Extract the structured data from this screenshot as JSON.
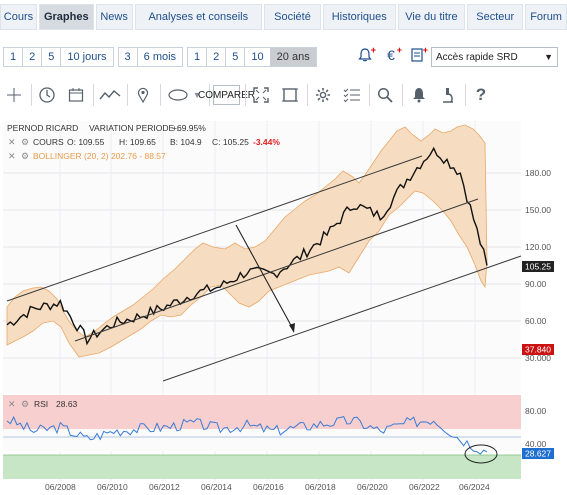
{
  "nav": {
    "tabs": [
      {
        "label": "Cours",
        "active": false
      },
      {
        "label": "Graphes",
        "active": true
      },
      {
        "label": "News",
        "active": false
      },
      {
        "label": "Analyses et conseils",
        "active": false
      },
      {
        "label": "Société",
        "active": false
      },
      {
        "label": "Historiques",
        "active": false
      },
      {
        "label": "Vie du titre",
        "active": false
      },
      {
        "label": "Secteur",
        "active": false
      },
      {
        "label": "Forum",
        "active": false
      }
    ]
  },
  "periods": {
    "group1": [
      "1",
      "2",
      "5",
      "10 jours"
    ],
    "group2": [
      "3",
      "6 mois"
    ],
    "group3": [
      "1",
      "2",
      "5",
      "10",
      "20 ans"
    ],
    "active": "20 ans"
  },
  "quick_access": {
    "selected": "Accès rapide SRD"
  },
  "toolbar": {
    "comparer_label": "COMPARER"
  },
  "chart_header": {
    "title": "PERNOD RICARD",
    "variation_label": "VARIATION PERIODE :",
    "variation_value": "+69.95%",
    "cours_label": "COURS",
    "open": "O: 109.55",
    "high": "H: 109.65",
    "low": "B: 104.9",
    "close": "C: 105.25",
    "change": "-3.44%",
    "bollinger": "BOLLINGER (20, 2) 202.76 - 88.57"
  },
  "rsi_header": {
    "label": "RSI",
    "value": "28.63"
  },
  "price_axis": {
    "ticks": [
      "180.00",
      "150.00",
      "120.00",
      "90.00",
      "60.00",
      "30.000"
    ],
    "current_price": "105.25",
    "marker_price": "37.840"
  },
  "rsi_axis": {
    "ticks": [
      "80.00",
      "40.00"
    ],
    "current": "28.627"
  },
  "x_axis": {
    "labels": [
      "06/2008",
      "06/2010",
      "06/2012",
      "06/2014",
      "06/2016",
      "06/2018",
      "06/2020",
      "06/2022",
      "06/2024"
    ]
  },
  "colors": {
    "price_line": "#111111",
    "bollinger_fill": "#f6dcc0",
    "bollinger_stroke": "#e8a868",
    "rsi_line": "#3a7bd5",
    "rsi_overbought": "#f7cfcf",
    "rsi_oversold": "#c6e6c6",
    "current_price_badge": "#222222",
    "marker_badge": "#cc1111",
    "rsi_badge": "#1f6fd1",
    "negative": "#e02020",
    "bollinger_text": "#e89a4a"
  },
  "chart_data": {
    "type": "line",
    "x": [
      "2006",
      "2007",
      "2008",
      "2009",
      "2010",
      "2011",
      "2012",
      "2013",
      "2014",
      "2015",
      "2016",
      "2017",
      "2018",
      "2019",
      "2020",
      "2021",
      "2022",
      "2023",
      "2024"
    ],
    "series": [
      {
        "values": [
          57,
          70,
          75,
          45,
          58,
          64,
          72,
          82,
          88,
          100,
          98,
          112,
          130,
          155,
          145,
          175,
          200,
          180,
          105
        ]
      }
    ],
    "rsi": [
      70,
      55,
      60,
      45,
      55,
      58,
      60,
      65,
      58,
      62,
      55,
      60,
      65,
      68,
      55,
      65,
      70,
      45,
      28.63
    ],
    "ylim": [
      30,
      200
    ]
  }
}
